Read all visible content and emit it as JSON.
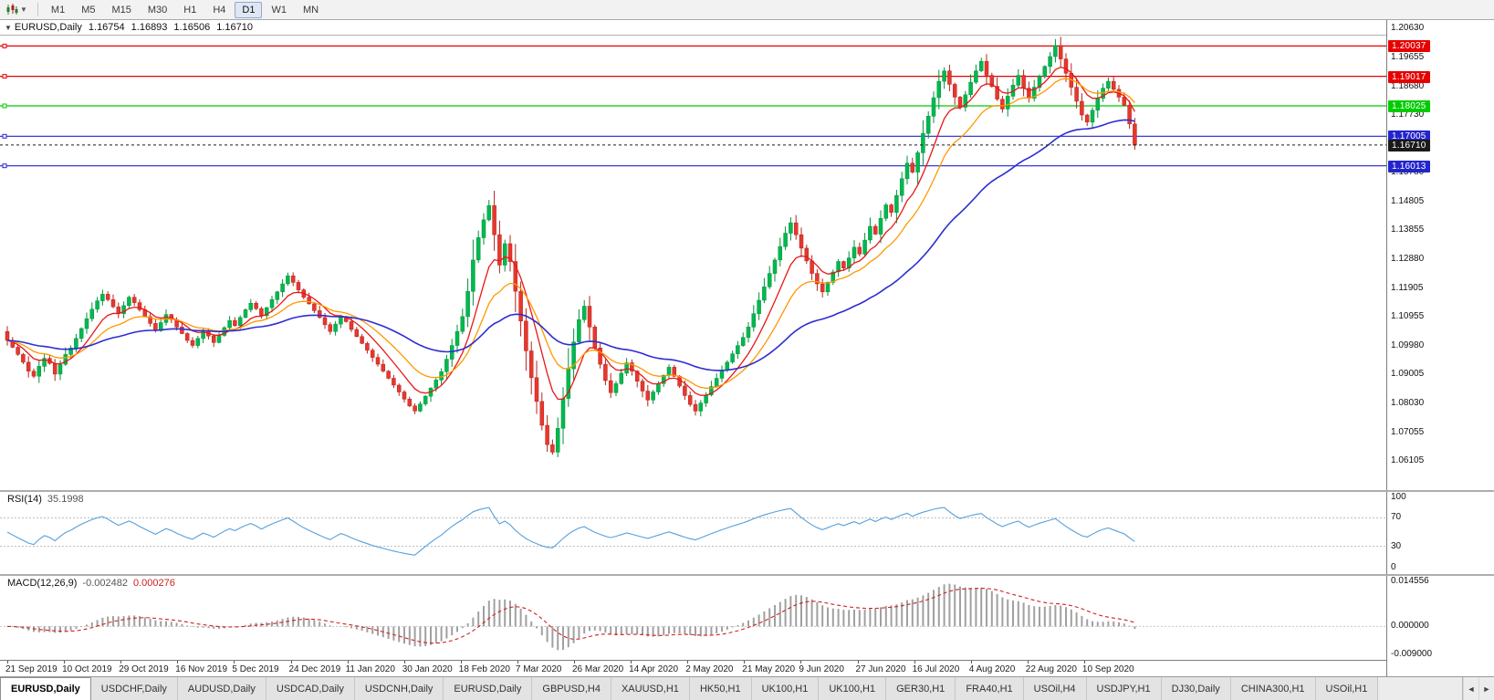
{
  "toolbar": {
    "timeframes": [
      "M1",
      "M5",
      "M15",
      "M30",
      "H1",
      "H4",
      "D1",
      "W1",
      "MN"
    ],
    "active": "D1"
  },
  "icons": {
    "collapse": "▼",
    "caret": "▼",
    "tab_scroll_left": "◄",
    "tab_scroll_right": "►"
  },
  "header": {
    "symbol": "EURUSD,Daily",
    "open": "1.16754",
    "high": "1.16893",
    "low": "1.16506",
    "close": "1.16710"
  },
  "price_axis": {
    "labels": [
      "1.20630",
      "1.19655",
      "1.18680",
      "1.17730",
      "1.16755",
      "1.15780",
      "1.14805",
      "1.13855",
      "1.12880",
      "1.11905",
      "1.10955",
      "1.09980",
      "1.09005",
      "1.08030",
      "1.07055",
      "1.06105"
    ]
  },
  "lines": {
    "horizontal": [
      {
        "price": 1.20037,
        "label": "1.20037",
        "color": "#e60000"
      },
      {
        "price": 1.19017,
        "label": "1.19017",
        "color": "#e60000"
      },
      {
        "price": 1.18025,
        "label": "1.18025",
        "color": "#00cc00"
      },
      {
        "price": 1.17005,
        "label": "1.17005",
        "color": "#2424cc"
      },
      {
        "price": 1.16013,
        "label": "1.16013",
        "color": "#2424cc"
      }
    ],
    "current": {
      "price": 1.1671,
      "label": "1.16710",
      "color": "#1a1a1a"
    }
  },
  "rsi": {
    "name": "RSI(14)",
    "value": "35.1998",
    "period": 14,
    "levels": [
      100,
      70,
      30,
      0
    ],
    "color": "#55a0dd"
  },
  "macd": {
    "name": "MACD(12,26,9)",
    "main_value": "-0.002482",
    "signal_value": "0.000276",
    "fast": 12,
    "slow": 26,
    "signal": 9,
    "axis_labels": [
      {
        "label": "0.014556",
        "value": 0.014556
      },
      {
        "label": "0.000000",
        "value": 0.0
      },
      {
        "label": "-0.009000",
        "value": -0.009
      }
    ],
    "histogram_color": "#a0a0a0",
    "signal_color": "#d02020"
  },
  "dates": [
    "21 Sep 2019",
    "10 Oct 2019",
    "29 Oct 2019",
    "16 Nov 2019",
    "5 Dec 2019",
    "24 Dec 2019",
    "11 Jan 2020",
    "30 Jan 2020",
    "18 Feb 2020",
    "7 Mar 2020",
    "26 Mar 2020",
    "14 Apr 2020",
    "2 May 2020",
    "21 May 2020",
    "9 Jun 2020",
    "27 Jun 2020",
    "16 Jul 2020",
    "4 Aug 2020",
    "22 Aug 2020",
    "10 Sep 2020"
  ],
  "tabs": {
    "items": [
      "EURUSD,Daily",
      "USDCHF,Daily",
      "AUDUSD,Daily",
      "USDCAD,Daily",
      "USDCNH,Daily",
      "EURUSD,Daily",
      "GBPUSD,H4",
      "XAUUSD,H1",
      "HK50,H1",
      "UK100,H1",
      "UK100,H1",
      "GER30,H1",
      "FRA40,H1",
      "USOil,H4",
      "USDJPY,H1",
      "DJ30,Daily",
      "CHINA300,H1",
      "USOil,H1"
    ],
    "active_index": 0
  },
  "chart_data": {
    "type": "candlestick",
    "symbol": "EURUSD",
    "timeframe": "Daily",
    "y_range": [
      1.05126,
      1.20906
    ],
    "up_color": "#00b94e",
    "up_stroke": "#00913c",
    "down_color": "#e8372d",
    "down_stroke": "#b2251d",
    "first_open": 1.1045,
    "closes": [
      1.1015,
      1.0992,
      1.0968,
      1.0942,
      1.0912,
      1.0895,
      1.0928,
      1.0955,
      1.0938,
      1.0902,
      1.0935,
      1.0968,
      1.099,
      1.1022,
      1.1055,
      1.1088,
      1.112,
      1.1148,
      1.117,
      1.1152,
      1.1128,
      1.1105,
      1.1132,
      1.116,
      1.1142,
      1.1118,
      1.1095,
      1.1072,
      1.1048,
      1.1075,
      1.1102,
      1.1085,
      1.106,
      1.1038,
      1.1015,
      1.0998,
      1.1022,
      1.1048,
      1.103,
      1.1008,
      1.1032,
      1.1058,
      1.1082,
      1.1065,
      1.1092,
      1.1118,
      1.114,
      1.1122,
      1.1098,
      1.1125,
      1.1152,
      1.1178,
      1.1205,
      1.1232,
      1.121,
      1.1185,
      1.116,
      1.1138,
      1.1115,
      1.1092,
      1.1068,
      1.1045,
      1.107,
      1.1095,
      1.1078,
      1.1052,
      1.1028,
      1.1005,
      1.0982,
      1.0958,
      1.0935,
      1.0912,
      1.0888,
      1.0865,
      1.0842,
      1.0818,
      1.0795,
      1.0778,
      1.0802,
      1.0828,
      1.0855,
      1.0882,
      1.091,
      1.0952,
      1.0998,
      1.1045,
      1.1095,
      1.118,
      1.1285,
      1.136,
      1.142,
      1.1468,
      1.137,
      1.1268,
      1.134,
      1.128,
      1.118,
      1.108,
      1.098,
      1.089,
      1.081,
      1.073,
      1.0665,
      1.064,
      1.072,
      1.082,
      1.092,
      1.101,
      1.1085,
      1.113,
      1.106,
      1.099,
      1.0935,
      1.088,
      1.084,
      1.087,
      1.0905,
      1.094,
      1.0912,
      1.0878,
      1.0845,
      1.0815,
      1.0842,
      1.087,
      1.0898,
      1.0925,
      1.0895,
      1.0862,
      1.083,
      1.08,
      1.0778,
      1.0805,
      1.0832,
      1.086,
      1.0888,
      1.0915,
      1.0942,
      1.097,
      1.0998,
      1.1025,
      1.106,
      1.1105,
      1.115,
      1.1195,
      1.124,
      1.1285,
      1.133,
      1.1375,
      1.141,
      1.137,
      1.1325,
      1.1282,
      1.124,
      1.1205,
      1.1178,
      1.121,
      1.1245,
      1.128,
      1.1258,
      1.1292,
      1.1328,
      1.1305,
      1.1352,
      1.1398,
      1.1372,
      1.1425,
      1.147,
      1.1445,
      1.1502,
      1.1558,
      1.161,
      1.158,
      1.1645,
      1.171,
      1.1768,
      1.183,
      1.1885,
      1.192,
      1.1875,
      1.1832,
      1.1798,
      1.184,
      1.1882,
      1.192,
      1.1952,
      1.1905,
      1.1868,
      1.1825,
      1.1792,
      1.1835,
      1.1872,
      1.1905,
      1.1862,
      1.1828,
      1.1865,
      1.1902,
      1.1935,
      1.1968,
      1.2005,
      1.196,
      1.1912,
      1.1865,
      1.1818,
      1.1772,
      1.1748,
      1.1788,
      1.1828,
      1.1862,
      1.1885,
      1.1858,
      1.1832,
      1.1805,
      1.1742,
      1.1671
    ],
    "moving_averages": [
      {
        "name": "ma-fast",
        "period": 8,
        "color": "#e81717",
        "width": 1.3
      },
      {
        "name": "ma-mid",
        "period": 16,
        "color": "#ff9800",
        "width": 1.3
      },
      {
        "name": "ma-slow",
        "period": 45,
        "color": "#2d2dd2",
        "width": 1.6
      }
    ]
  }
}
